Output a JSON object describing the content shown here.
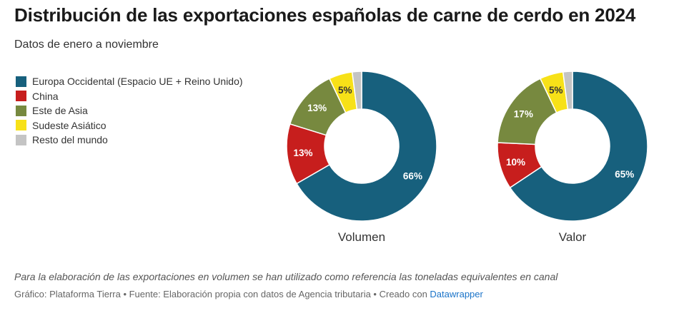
{
  "title": "Distribución de las exportaciones españolas de carne de cerdo en 2024",
  "subtitle": "Datos de enero a noviembre",
  "legend": [
    {
      "label": "Europa Occidental (Espacio UE + Reino Unido)",
      "color": "#17607d"
    },
    {
      "label": "China",
      "color": "#c71e1d"
    },
    {
      "label": "Este de Asia",
      "color": "#77893f"
    },
    {
      "label": "Sudeste Asiático",
      "color": "#f7e118"
    },
    {
      "label": "Resto del mundo",
      "color": "#c4c4c4"
    }
  ],
  "chart_data": [
    {
      "type": "pie",
      "title": "Volumen",
      "categories": [
        "Europa Occidental (Espacio UE + Reino Unido)",
        "China",
        "Este de Asia",
        "Sudeste Asiático",
        "Resto del mundo"
      ],
      "values": [
        66,
        13,
        13,
        5,
        2
      ],
      "labels": [
        "66%",
        "13%",
        "13%",
        "5%",
        ""
      ]
    },
    {
      "type": "pie",
      "title": "Valor",
      "categories": [
        "Europa Occidental (Espacio UE + Reino Unido)",
        "China",
        "Este de Asia",
        "Sudeste Asiático",
        "Resto del mundo"
      ],
      "values": [
        65,
        10,
        17,
        5,
        2
      ],
      "labels": [
        "65%",
        "10%",
        "17%",
        "5%",
        ""
      ]
    }
  ],
  "footer": {
    "note": "Para la elaboración de las exportaciones en volumen se han utilizado como referencia las toneladas equivalentes en canal",
    "credits": "Gráfico: Plataforma Tierra • Fuente: Elaboración propia con datos de Agencia tributaria • Creado con ",
    "credits_link": "Datawrapper"
  }
}
